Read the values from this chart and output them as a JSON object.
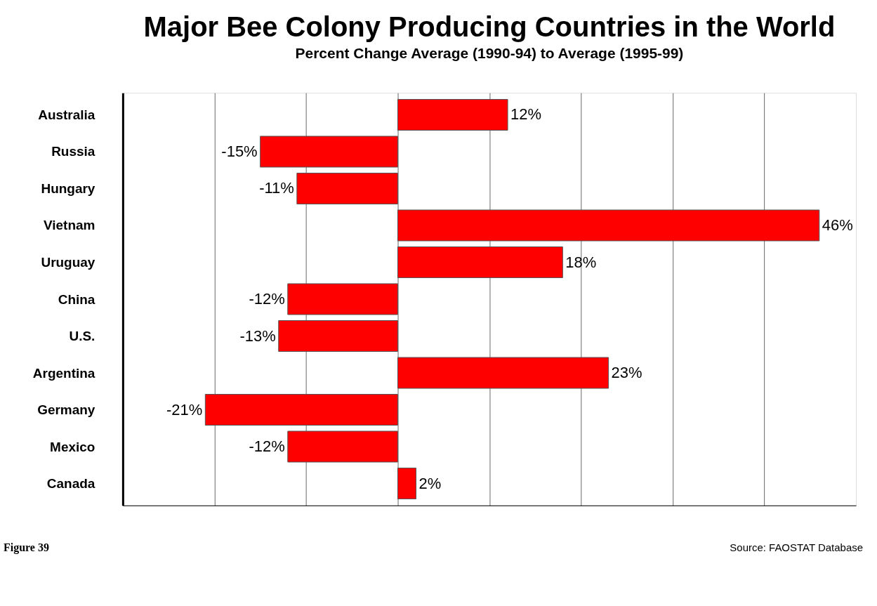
{
  "chart_data": {
    "type": "bar",
    "orientation": "horizontal",
    "title": "Major Bee Colony Producing Countries in the World",
    "subtitle": "Percent Change Average (1990-94) to Average (1995-99)",
    "categories": [
      "Australia",
      "Russia",
      "Hungary",
      "Vietnam",
      "Uruguay",
      "China",
      "U.S.",
      "Argentina",
      "Germany",
      "Mexico",
      "Canada"
    ],
    "values": [
      12,
      -15,
      -11,
      46,
      18,
      -12,
      -13,
      23,
      -21,
      -12,
      2
    ],
    "value_labels": [
      "12%",
      "-15%",
      "-11%",
      "46%",
      "18%",
      "-12%",
      "-13%",
      "23%",
      "-21%",
      "-12%",
      "2%"
    ],
    "color": "#ff0000",
    "xlim": [
      -30,
      50
    ],
    "xticks": [
      {
        "value": -20,
        "label": null
      },
      {
        "value": -10,
        "label": null
      },
      {
        "value": 0,
        "label": null
      },
      {
        "value": 10,
        "label": null
      },
      {
        "value": 20,
        "label": null
      },
      {
        "value": 30,
        "label": null
      },
      {
        "value": 40,
        "label": null
      }
    ],
    "tick_labels": "y",
    "grid": "x",
    "annotations": [
      "Figure 39",
      "Source:  FAOSTAT Database"
    ]
  }
}
